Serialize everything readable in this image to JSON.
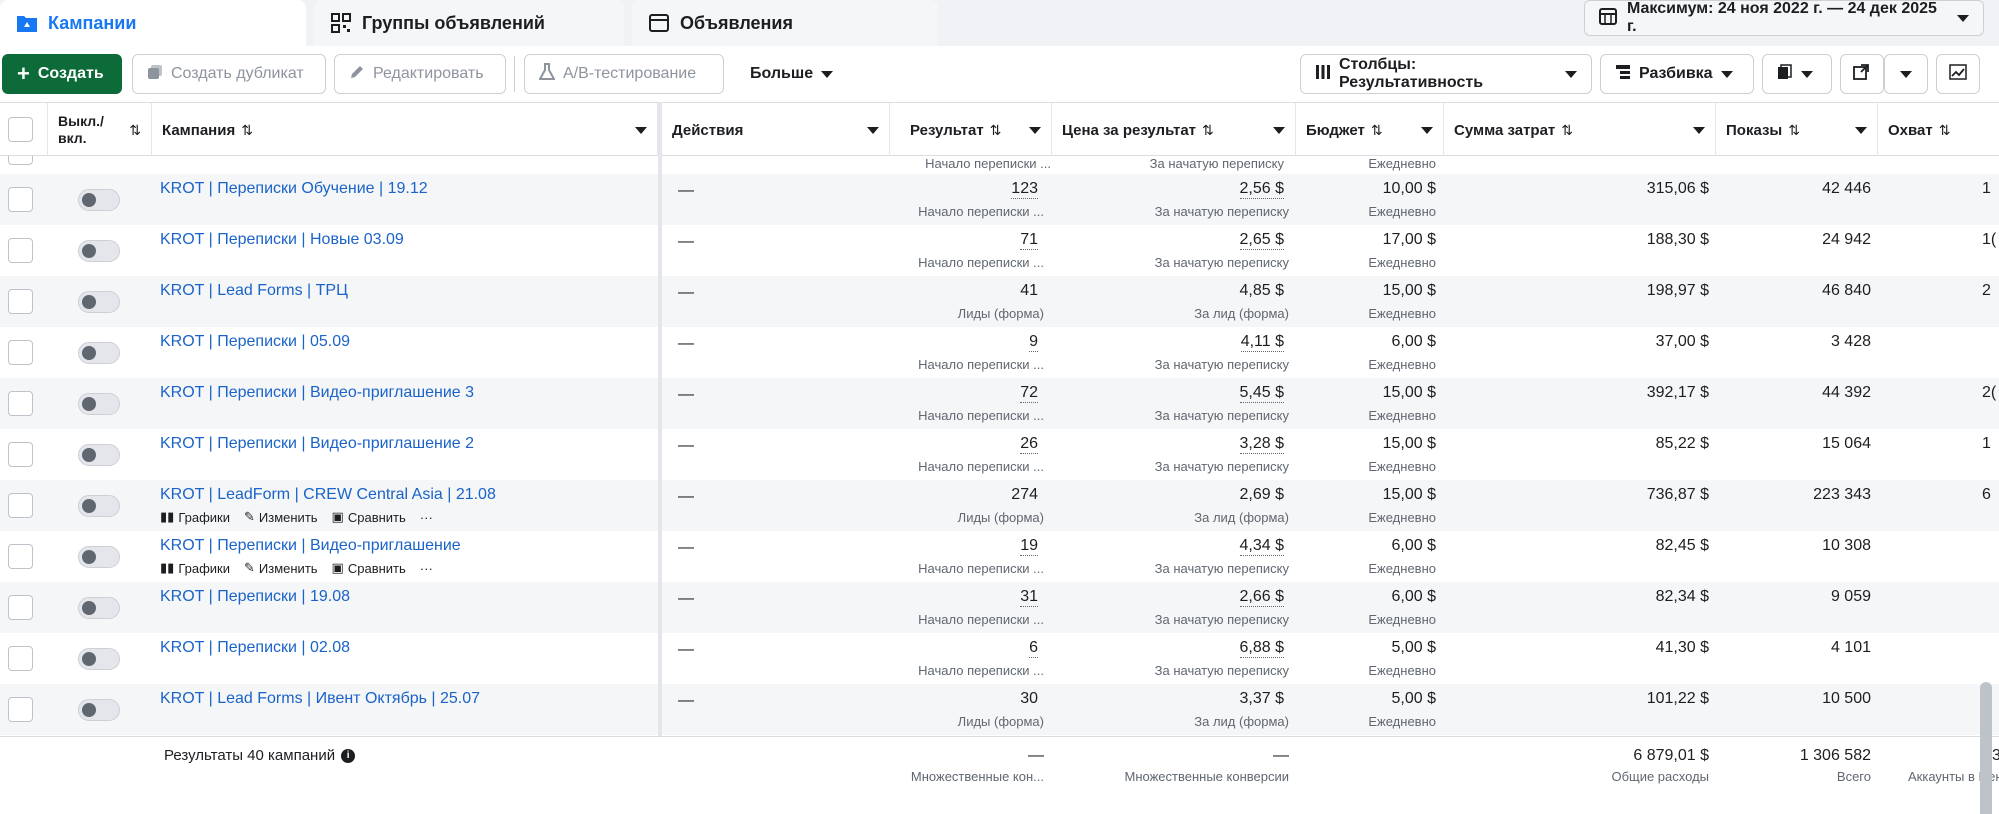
{
  "tabs": [
    {
      "label": "Кампании",
      "active": true
    },
    {
      "label": "Группы объявлений",
      "active": false
    },
    {
      "label": "Объявления",
      "active": false
    }
  ],
  "date_range": "Максимум: 24 ноя 2022 г. — 24 дек 2025 г.",
  "toolbar": {
    "create": "Создать",
    "duplicate": "Создать дубликат",
    "edit": "Редактировать",
    "ab_test": "A/B-тестирование",
    "more": "Больше",
    "columns": "Столбцы: Результативность",
    "breakdown": "Разбивка"
  },
  "columns": {
    "toggle": "Выкл./ вкл.",
    "campaign": "Кампания",
    "actions": "Действия",
    "result": "Результат",
    "cost_per_result": "Цена за результат",
    "budget": "Бюджет",
    "spent": "Сумма затрат",
    "impressions": "Показы",
    "reach": "Охват"
  },
  "partial_row": {
    "result_sub": "Начало переписки ...",
    "cost_sub": "За начатую переписку",
    "budget_sub": "Ежедневно"
  },
  "row_actions": {
    "charts": "Графики",
    "edit": "Изменить",
    "compare": "Сравнить",
    "more": "···"
  },
  "rows": [
    {
      "name": "KROT | Переписки Обучение | 19.12",
      "actions": "—",
      "result": "123",
      "result_sub": "Начало переписки ...",
      "cost": "2,56 $",
      "cost_sub": "За начатую переписку",
      "budget": "10,00 $",
      "budget_sub": "Ежедневно",
      "spent": "315,06 $",
      "impressions": "42 446",
      "reach": "1",
      "dotted": true,
      "show_actions": false
    },
    {
      "name": "KROT | Переписки | Новые 03.09",
      "actions": "—",
      "result": "71",
      "result_sub": "Начало переписки ...",
      "cost": "2,65 $",
      "cost_sub": "За начатую переписку",
      "budget": "17,00 $",
      "budget_sub": "Ежедневно",
      "spent": "188,30 $",
      "impressions": "24 942",
      "reach": "1(",
      "dotted": true,
      "show_actions": false
    },
    {
      "name": "KROT | Lead Forms | ТРЦ",
      "actions": "—",
      "result": "41",
      "result_sub": "Лиды (форма)",
      "cost": "4,85 $",
      "cost_sub": "За лид (форма)",
      "budget": "15,00 $",
      "budget_sub": "Ежедневно",
      "spent": "198,97 $",
      "impressions": "46 840",
      "reach": "2",
      "dotted": false,
      "show_actions": false
    },
    {
      "name": "KROT | Переписки | 05.09",
      "actions": "—",
      "result": "9",
      "result_sub": "Начало переписки ...",
      "cost": "4,11 $",
      "cost_sub": "За начатую переписку",
      "budget": "6,00 $",
      "budget_sub": "Ежедневно",
      "spent": "37,00 $",
      "impressions": "3 428",
      "reach": "",
      "dotted": true,
      "show_actions": false
    },
    {
      "name": "KROT | Переписки | Видео-приглашение 3",
      "actions": "—",
      "result": "72",
      "result_sub": "Начало переписки ...",
      "cost": "5,45 $",
      "cost_sub": "За начатую переписку",
      "budget": "15,00 $",
      "budget_sub": "Ежедневно",
      "spent": "392,17 $",
      "impressions": "44 392",
      "reach": "2(",
      "dotted": true,
      "show_actions": false
    },
    {
      "name": "KROT | Переписки | Видео-приглашение 2",
      "actions": "—",
      "result": "26",
      "result_sub": "Начало переписки ...",
      "cost": "3,28 $",
      "cost_sub": "За начатую переписку",
      "budget": "15,00 $",
      "budget_sub": "Ежедневно",
      "spent": "85,22 $",
      "impressions": "15 064",
      "reach": "1",
      "dotted": true,
      "show_actions": false
    },
    {
      "name": "KROT | LeadForm | CREW Central Asia | 21.08",
      "actions": "—",
      "result": "274",
      "result_sub": "Лиды (форма)",
      "cost": "2,69 $",
      "cost_sub": "За лид (форма)",
      "budget": "15,00 $",
      "budget_sub": "Ежедневно",
      "spent": "736,87 $",
      "impressions": "223 343",
      "reach": "6",
      "dotted": false,
      "show_actions": true
    },
    {
      "name": "KROT | Переписки | Видео-приглашение",
      "actions": "—",
      "result": "19",
      "result_sub": "Начало переписки ...",
      "cost": "4,34 $",
      "cost_sub": "За начатую переписку",
      "budget": "6,00 $",
      "budget_sub": "Ежедневно",
      "spent": "82,45 $",
      "impressions": "10 308",
      "reach": "",
      "dotted": true,
      "show_actions": true
    },
    {
      "name": "KROT | Переписки | 19.08",
      "actions": "—",
      "result": "31",
      "result_sub": "Начало переписки ...",
      "cost": "2,66 $",
      "cost_sub": "За начатую переписку",
      "budget": "6,00 $",
      "budget_sub": "Ежедневно",
      "spent": "82,34 $",
      "impressions": "9 059",
      "reach": "",
      "dotted": true,
      "show_actions": false
    },
    {
      "name": "KROT | Переписки | 02.08",
      "actions": "—",
      "result": "6",
      "result_sub": "Начало переписки ...",
      "cost": "6,88 $",
      "cost_sub": "За начатую переписку",
      "budget": "5,00 $",
      "budget_sub": "Ежедневно",
      "spent": "41,30 $",
      "impressions": "4 101",
      "reach": "",
      "dotted": true,
      "show_actions": false
    },
    {
      "name": "KROT | Lead Forms | Ивент Октябрь | 25.07",
      "actions": "—",
      "result": "30",
      "result_sub": "Лиды (форма)",
      "cost": "3,37 $",
      "cost_sub": "За лид (форма)",
      "budget": "5,00 $",
      "budget_sub": "Ежедневно",
      "spent": "101,22 $",
      "impressions": "10 500",
      "reach": "",
      "dotted": false,
      "show_actions": false
    }
  ],
  "summary": {
    "label": "Результаты 40 кампаний",
    "result": "—",
    "result_sub": "Множественные кон...",
    "cost": "—",
    "cost_sub": "Множественные конверсии",
    "spent": "6 879,01 $",
    "spent_sub": "Общие расходы",
    "impressions": "1 306 582",
    "impressions_sub": "Всего",
    "reach": "3",
    "reach_sub": "Аккаунты в Цен"
  }
}
